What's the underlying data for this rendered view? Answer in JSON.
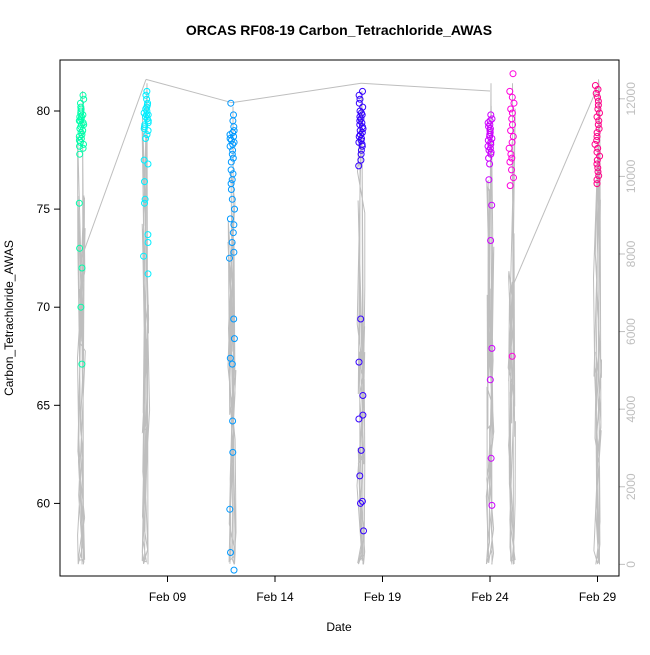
{
  "chart_data": {
    "type": "scatter",
    "title": "ORCAS RF08-19 Carbon_Tetrachloride_AWAS",
    "xlabel": "Date",
    "ylabel": "Carbon_Tetrachloride_AWAS",
    "ylim": [
      56.3,
      82.6
    ],
    "y_ticks": [
      60,
      65,
      70,
      75,
      80
    ],
    "y2lim": [
      -300,
      13000
    ],
    "y2_ticks": [
      0,
      2000,
      4000,
      6000,
      8000,
      10000,
      12000
    ],
    "y2_color": "#bebebe",
    "xlim": [
      "2016-02-04",
      "2016-03-01"
    ],
    "x_ticks": [
      {
        "date": "2016-02-09",
        "label": "Feb 09"
      },
      {
        "date": "2016-02-14",
        "label": "Feb 14"
      },
      {
        "date": "2016-02-19",
        "label": "Feb 19"
      },
      {
        "date": "2016-02-24",
        "label": "Feb 24"
      },
      {
        "date": "2016-02-29",
        "label": "Feb 29"
      }
    ],
    "point_style": "open circles, colored by flight",
    "flights": [
      {
        "date": "2016-02-05",
        "color": "#00ffaa",
        "altitude_min": 0,
        "altitude_max": 12200,
        "values": [
          80.8,
          80.6,
          80.4,
          80.2,
          80.1,
          80.0,
          79.9,
          79.8,
          79.7,
          79.7,
          79.6,
          79.5,
          79.5,
          79.4,
          79.3,
          79.3,
          79.2,
          79.1,
          79.0,
          78.9,
          78.8,
          78.7,
          78.6,
          78.5,
          78.4,
          78.3,
          78.2,
          78.1,
          77.8,
          75.3,
          73.0,
          72.0,
          70.0,
          67.1
        ]
      },
      {
        "date": "2016-02-08",
        "color": "#00eeff",
        "altitude_min": 0,
        "altitude_max": 12400,
        "values": [
          81.0,
          80.8,
          80.6,
          80.4,
          80.3,
          80.2,
          80.1,
          80.0,
          79.9,
          79.8,
          79.8,
          79.7,
          79.6,
          79.5,
          79.4,
          79.3,
          79.2,
          79.1,
          79.0,
          78.8,
          78.6,
          77.5,
          77.3,
          76.4,
          75.5,
          75.3,
          73.7,
          73.3,
          72.6,
          71.7
        ]
      },
      {
        "date": "2016-02-12",
        "color": "#0099ff",
        "altitude_min": 0,
        "altitude_max": 11800,
        "values": [
          80.4,
          79.8,
          79.5,
          79.2,
          79.0,
          78.9,
          78.8,
          78.7,
          78.6,
          78.5,
          78.4,
          78.3,
          78.2,
          78.0,
          77.8,
          77.6,
          77.4,
          77.0,
          76.8,
          76.5,
          76.3,
          76.0,
          75.5,
          75.0,
          74.5,
          74.2,
          73.8,
          73.3,
          72.8,
          72.5,
          69.4,
          68.4,
          67.4,
          67.1,
          64.2,
          62.6,
          59.7,
          57.5,
          56.6
        ]
      },
      {
        "date": "2016-02-18",
        "color": "#3300ff",
        "altitude_min": 0,
        "altitude_max": 12200,
        "values": [
          81.0,
          80.8,
          80.6,
          80.4,
          80.2,
          80.0,
          79.9,
          79.8,
          79.7,
          79.6,
          79.5,
          79.4,
          79.3,
          79.2,
          79.1,
          79.0,
          78.9,
          78.8,
          78.7,
          78.6,
          78.5,
          78.4,
          78.3,
          78.2,
          78.0,
          77.8,
          77.5,
          77.2,
          69.4,
          67.2,
          65.5,
          64.5,
          64.3,
          62.7,
          61.4,
          60.1,
          60.0,
          58.6
        ]
      },
      {
        "date": "2016-02-24",
        "color": "#cc00ff",
        "altitude_min": 0,
        "altitude_max": 12400,
        "values": [
          79.8,
          79.6,
          79.5,
          79.4,
          79.3,
          79.2,
          79.1,
          79.0,
          78.9,
          78.8,
          78.7,
          78.6,
          78.5,
          78.4,
          78.3,
          78.2,
          78.1,
          78.0,
          77.9,
          77.8,
          77.6,
          77.3,
          76.5,
          75.2,
          73.4,
          67.9,
          66.3,
          62.3,
          59.9
        ]
      },
      {
        "date": "2016-02-25",
        "color": "#ff00dd",
        "altitude_min": 0,
        "altitude_max": 12400,
        "values": [
          81.9,
          81.0,
          80.7,
          80.4,
          80.1,
          79.9,
          79.6,
          79.3,
          79.0,
          78.7,
          78.4,
          78.1,
          77.8,
          77.6,
          77.4,
          77.0,
          76.6,
          76.2,
          67.5
        ]
      },
      {
        "date": "2016-02-29",
        "color": "#ff0088",
        "altitude_min": 0,
        "altitude_max": 12500,
        "values": [
          81.3,
          81.1,
          80.9,
          80.7,
          80.5,
          80.3,
          80.1,
          79.9,
          79.7,
          79.5,
          79.3,
          79.1,
          78.9,
          78.7,
          78.5,
          78.3,
          78.1,
          77.9,
          77.7,
          77.5,
          77.3,
          77.1,
          76.9,
          76.7,
          76.5,
          76.3
        ]
      }
    ],
    "connector_color": "#bebebe",
    "connectors": [
      {
        "from": [
          "2016-02-05",
          7900
        ],
        "to": [
          "2016-02-08",
          12500
        ]
      },
      {
        "from": [
          "2016-02-08",
          12500
        ],
        "to": [
          "2016-02-12",
          11900
        ]
      },
      {
        "from": [
          "2016-02-12",
          11900
        ],
        "to": [
          "2016-02-18",
          12400
        ]
      },
      {
        "from": [
          "2016-02-18",
          12400
        ],
        "to": [
          "2016-02-24",
          12200
        ]
      },
      {
        "from": [
          "2016-02-25",
          7100
        ],
        "to": [
          "2016-02-29",
          12300
        ]
      }
    ]
  }
}
